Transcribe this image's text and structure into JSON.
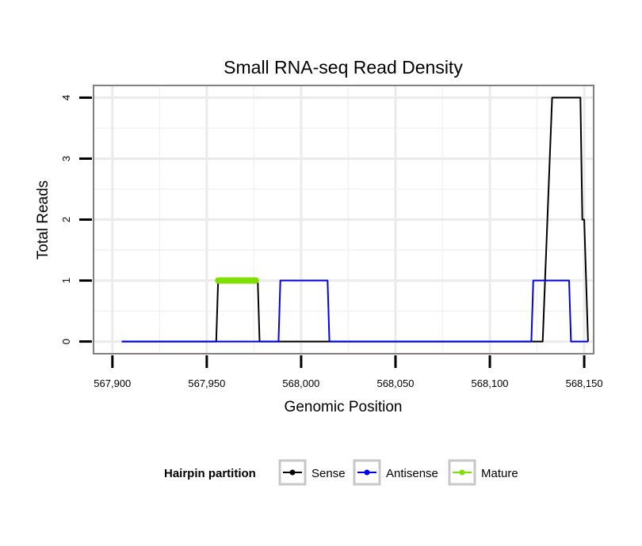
{
  "chart_data": {
    "type": "line",
    "title": "Small RNA-seq Read Density",
    "xlabel": "Genomic Position",
    "ylabel": "Total Reads",
    "xlim": [
      567890,
      568155
    ],
    "ylim": [
      -0.2,
      4.2
    ],
    "x_ticks": [
      567900,
      567950,
      568000,
      568050,
      568100,
      568150
    ],
    "x_tick_labels": [
      "567,900",
      "567,950",
      "568,000",
      "568,050",
      "568,100",
      "568,150"
    ],
    "y_ticks": [
      0,
      1,
      2,
      3,
      4
    ],
    "y_tick_labels": [
      "0",
      "1",
      "2",
      "3",
      "4"
    ],
    "grid": true,
    "legend": {
      "title": "Hairpin partition",
      "placement": "bottom"
    },
    "series": [
      {
        "name": "Sense",
        "color": "#000000",
        "x": [
          567905,
          567955,
          567956,
          567977,
          567978,
          568128,
          568133,
          568148,
          568149,
          568150,
          568152
        ],
        "y": [
          0,
          0,
          1,
          1,
          0,
          0,
          4,
          4,
          2,
          2,
          0
        ]
      },
      {
        "name": "Antisense",
        "color": "#0000ee",
        "x": [
          567905,
          567988,
          567989,
          568014,
          568015,
          568122,
          568123,
          568142,
          568143,
          568150,
          568152
        ],
        "y": [
          0,
          0,
          1,
          1,
          0,
          0,
          1,
          1,
          0,
          0,
          0
        ]
      },
      {
        "name": "Mature",
        "color": "#7fe000",
        "x": [
          567956,
          567976
        ],
        "y": [
          1,
          1
        ]
      }
    ]
  }
}
